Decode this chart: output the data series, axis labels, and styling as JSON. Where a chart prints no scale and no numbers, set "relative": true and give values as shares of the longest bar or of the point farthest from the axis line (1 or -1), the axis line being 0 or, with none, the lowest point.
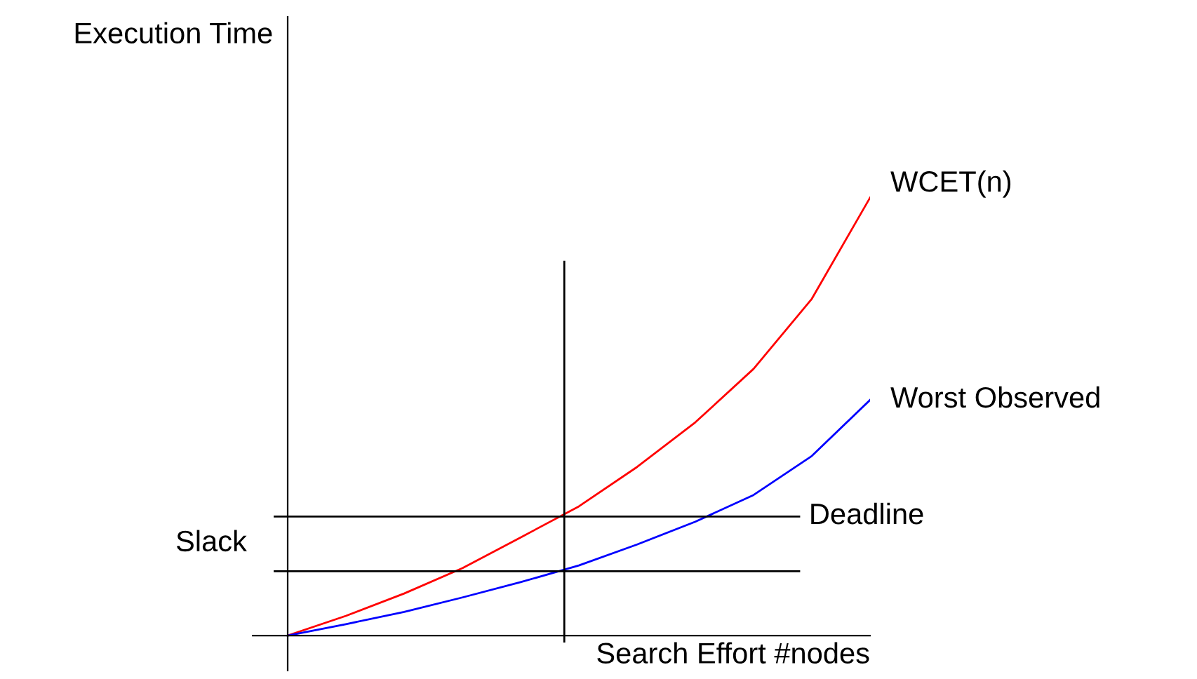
{
  "chart_data": {
    "type": "line",
    "relative": true,
    "xlabel": "Search Effort #nodes",
    "categories": [
      null,
      null,
      null,
      null,
      null,
      null,
      null,
      null,
      null,
      null,
      null
    ],
    "series": [
      {
        "name": "WCET(n)",
        "color": "#ff0000",
        "values": [
          0,
          0.045,
          0.096,
          0.154,
          0.224,
          0.295,
          0.385,
          0.487,
          0.609,
          0.769,
          1
        ]
      },
      {
        "name": "Worst Observed",
        "color": "#0000ff",
        "values": [
          0,
          0.026,
          0.054,
          0.087,
          0.122,
          0.16,
          0.208,
          0.26,
          0.321,
          0.41,
          0.538
        ]
      }
    ],
    "ref_lines": [
      {
        "axis": "y",
        "value": 0.272,
        "label": "Deadline",
        "color": "#000000"
      },
      {
        "axis": "y",
        "value": 0.147,
        "color": "#000000"
      }
    ],
    "annotations": [
      "Slack",
      "Execution Time"
    ]
  }
}
